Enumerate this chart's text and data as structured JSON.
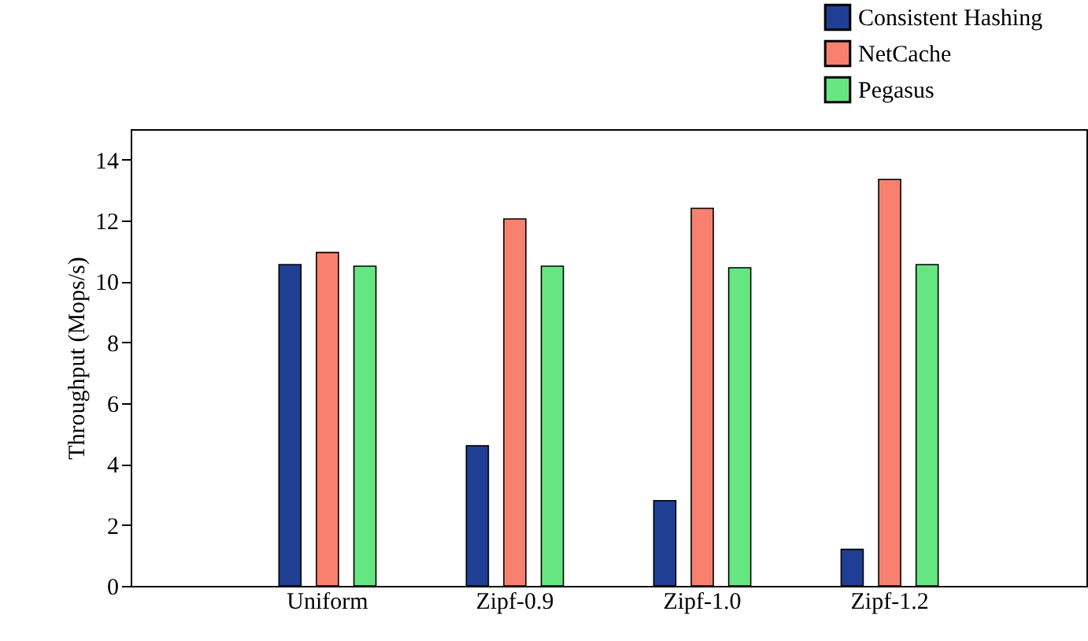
{
  "chart_data": {
    "type": "bar",
    "ylabel": "Throughput (Mops/s)",
    "categories": [
      "Uniform",
      "Zipf-0.9",
      "Zipf-1.0",
      "Zipf-1.2"
    ],
    "series": [
      {
        "name": "Consistent Hashing",
        "color": "#1f3f94",
        "values": [
          10.55,
          4.6,
          2.8,
          1.2
        ]
      },
      {
        "name": "NetCache",
        "color": "#f8806f",
        "values": [
          10.95,
          12.05,
          12.4,
          13.35
        ]
      },
      {
        "name": "Pegasus",
        "color": "#66e680",
        "values": [
          10.5,
          10.5,
          10.45,
          10.55
        ]
      }
    ],
    "ylim": [
      0,
      15
    ],
    "yticks": [
      0,
      2,
      4,
      6,
      8,
      10,
      12,
      14
    ],
    "grid": false,
    "legend": "top right"
  }
}
